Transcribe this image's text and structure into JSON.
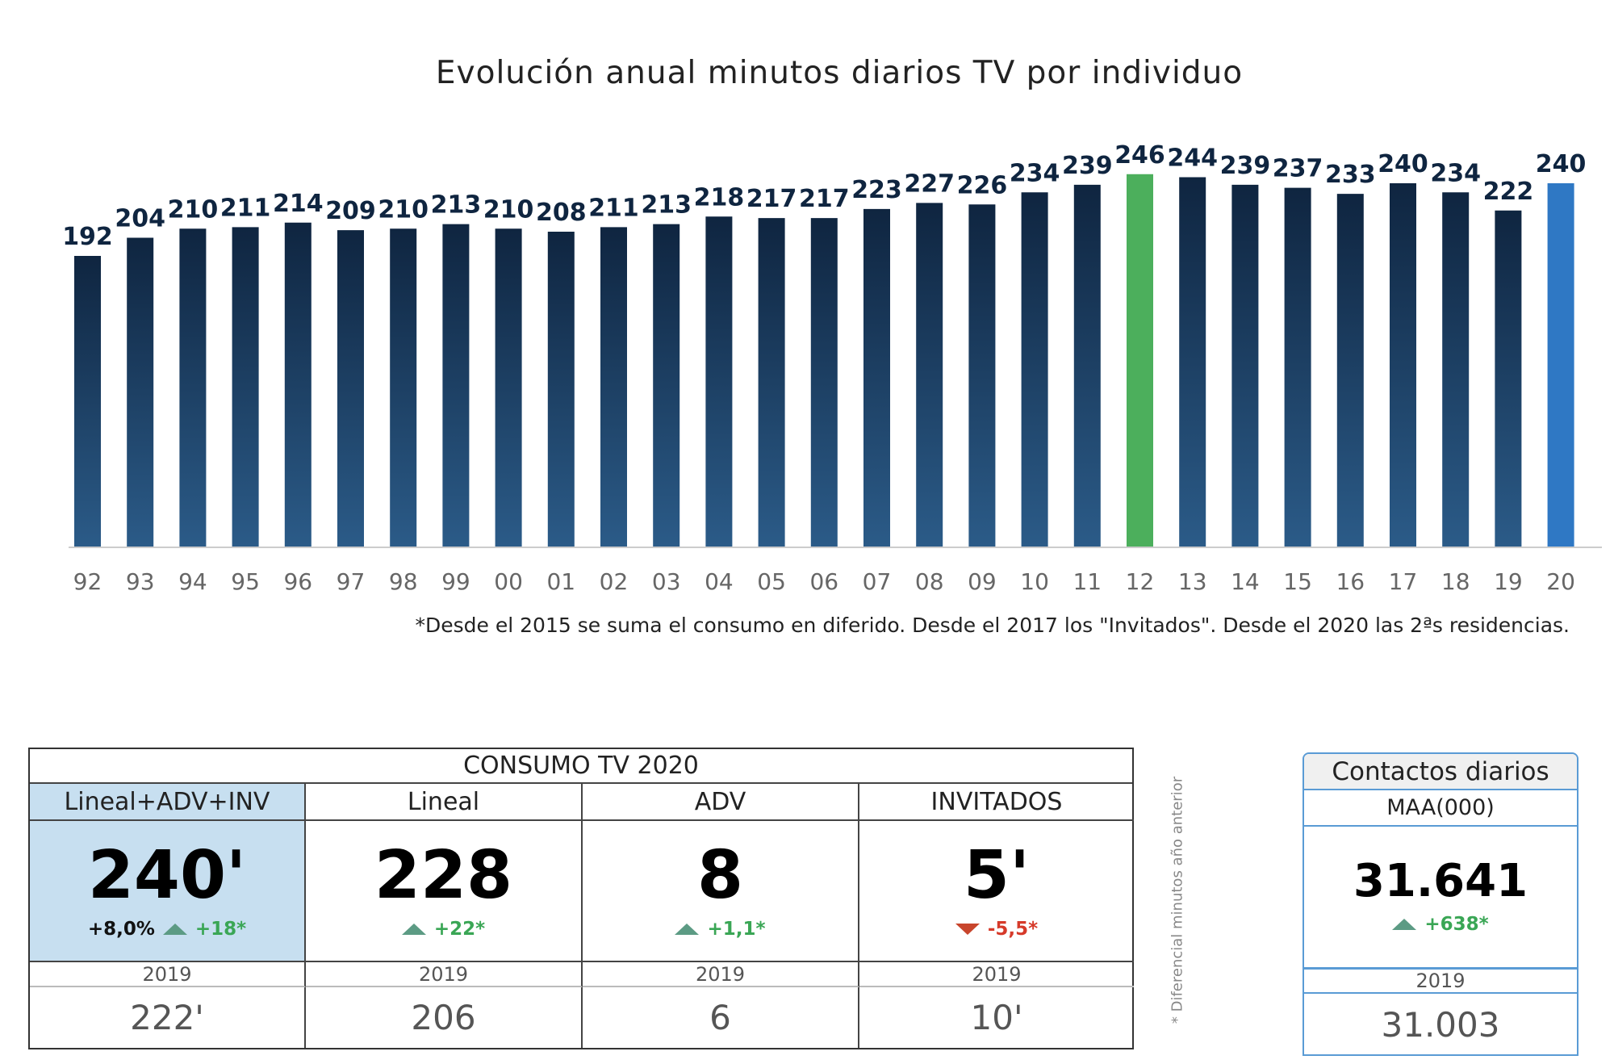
{
  "chart_data": {
    "type": "bar",
    "title": "Evolución anual minutos diarios TV por individuo",
    "categories": [
      "92",
      "93",
      "94",
      "95",
      "96",
      "97",
      "98",
      "99",
      "00",
      "01",
      "02",
      "03",
      "04",
      "05",
      "06",
      "07",
      "08",
      "09",
      "10",
      "11",
      "12",
      "13",
      "14",
      "15",
      "16",
      "17",
      "18",
      "19",
      "20"
    ],
    "values": [
      192,
      204,
      210,
      211,
      214,
      209,
      210,
      213,
      210,
      208,
      211,
      213,
      218,
      217,
      217,
      223,
      227,
      226,
      234,
      239,
      246,
      244,
      239,
      237,
      233,
      240,
      234,
      222,
      240
    ],
    "ylim": [
      0,
      250
    ],
    "grid": false,
    "data_labels": true,
    "colors": {
      "default_top": "#0f2540",
      "default_bottom": "#2b5b88",
      "highlight_max": "#4caf5c",
      "highlight_last": "#2f78c4"
    },
    "highlight": {
      "12": "highlight_max",
      "20": "highlight_last"
    }
  },
  "footnote": "*Desde el 2015 se suma el consumo en diferido. Desde el 2017 los \"Invitados\". Desde el 2020 las 2ªs residencias.",
  "consumo": {
    "title": "CONSUMO TV 2020",
    "columns": [
      {
        "header": "Lineal+ADV+INV",
        "value": "240'",
        "pct": "+8,0%",
        "delta": "+18*",
        "dir": "up",
        "year": "2019",
        "prev": "222'"
      },
      {
        "header": "Lineal",
        "value": "228",
        "delta": "+22*",
        "dir": "up",
        "year": "2019",
        "prev": "206"
      },
      {
        "header": "ADV",
        "value": "8",
        "delta": "+1,1*",
        "dir": "up",
        "year": "2019",
        "prev": "6"
      },
      {
        "header": "INVITADOS",
        "value": "5'",
        "delta": "-5,5*",
        "dir": "down",
        "year": "2019",
        "prev": "10'"
      }
    ]
  },
  "side_note": "* Diferencial minutos año anterior",
  "contactos": {
    "title": "Contactos diarios",
    "subtitle": "MAA(000)",
    "value": "31.641",
    "delta": "+638*",
    "year": "2019",
    "prev": "31.003"
  },
  "colors": {
    "up": "#3aa655",
    "down": "#d63a2a",
    "header_blue": "#c7dff0",
    "box_blue": "#5a9bd5"
  }
}
